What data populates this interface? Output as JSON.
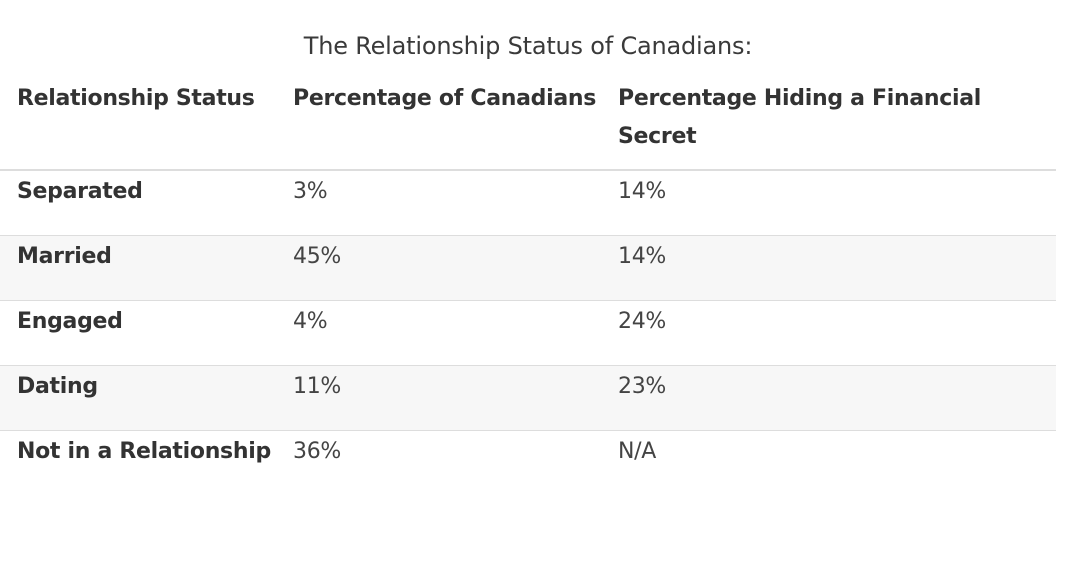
{
  "caption": "The Relationship Status of Canadians:",
  "table": {
    "headers": [
      "Relationship Status",
      "Percentage of Canadians",
      "Percentage Hiding a Financial Secret"
    ],
    "rows": [
      [
        "Separated",
        "3%",
        "14%"
      ],
      [
        "Married",
        "45%",
        "14%"
      ],
      [
        "Engaged",
        "4%",
        "24%"
      ],
      [
        "Dating",
        "11%",
        "23%"
      ],
      [
        "Not in a Relationship",
        "36%",
        "N/A"
      ]
    ]
  },
  "colors": {
    "border": "#dddddd",
    "stripe": "#f7f7f7",
    "text": "#333333"
  }
}
